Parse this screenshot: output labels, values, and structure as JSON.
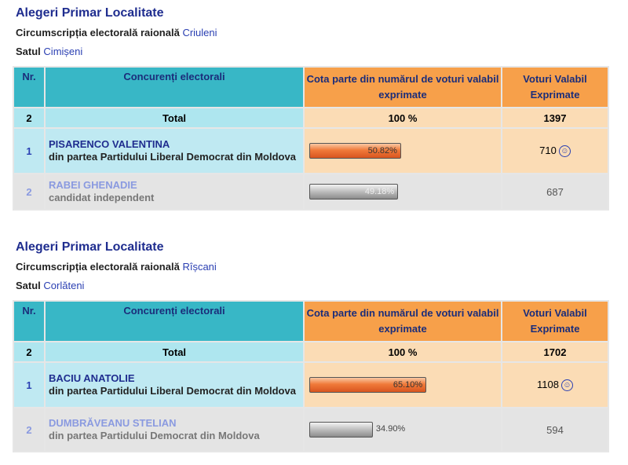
{
  "blocks": [
    {
      "title": "Alegeri Primar Localitate",
      "district_label": "Circumscripția electorală raională",
      "district_name": "Criuleni",
      "village_label": "Satul",
      "village_name": "Cimișeni",
      "headers": {
        "nr": "Nr.",
        "competitors": "Concurenți electorali",
        "share": "Cota parte din numărul de voturi valabil exprimate",
        "votes": "Voturi Valabil Exprimate"
      },
      "total": {
        "nr": "2",
        "label": "Total",
        "pct": "100 %",
        "votes": "1397"
      },
      "candidates": [
        {
          "nr": "1",
          "name": "PISARENCO VALENTINA",
          "party": "din partea Partidului Liberal Democrat din Moldova",
          "pct_label": "50.82%",
          "pct": 50.82,
          "votes": "710",
          "winner": true
        },
        {
          "nr": "2",
          "name": "RABEI GHENADIE",
          "party": "candidat independent",
          "pct_label": "49.18%",
          "pct": 49.18,
          "votes": "687",
          "winner": false
        }
      ]
    },
    {
      "title": "Alegeri Primar Localitate",
      "district_label": "Circumscripția electorală raională",
      "district_name": "Rîșcani",
      "village_label": "Satul",
      "village_name": "Corlăteni",
      "headers": {
        "nr": "Nr.",
        "competitors": "Concurenți electorali",
        "share": "Cota parte din numărul de voturi valabil exprimate",
        "votes": "Voturi Valabil Exprimate"
      },
      "total": {
        "nr": "2",
        "label": "Total",
        "pct": "100 %",
        "votes": "1702"
      },
      "candidates": [
        {
          "nr": "1",
          "name": "BACIU ANATOLIE",
          "party": "din partea Partidului Liberal Democrat din Moldova",
          "pct_label": "65.10%",
          "pct": 65.1,
          "votes": "1108",
          "winner": true
        },
        {
          "nr": "2",
          "name": "DUMBRĂVEANU STELIAN",
          "party": "din partea Partidului Democrat din Moldova",
          "pct_label": "34.90%",
          "pct": 34.9,
          "votes": "594",
          "winner": false
        }
      ]
    }
  ],
  "icons": {
    "winner": "smiley-icon"
  },
  "colors": {
    "header_teal": "#38b7c6",
    "header_orange": "#f7a04a",
    "bar_orange": "#f07a3a",
    "bar_gray": "#a8a8a8",
    "link_blue": "#2a3fb2"
  }
}
